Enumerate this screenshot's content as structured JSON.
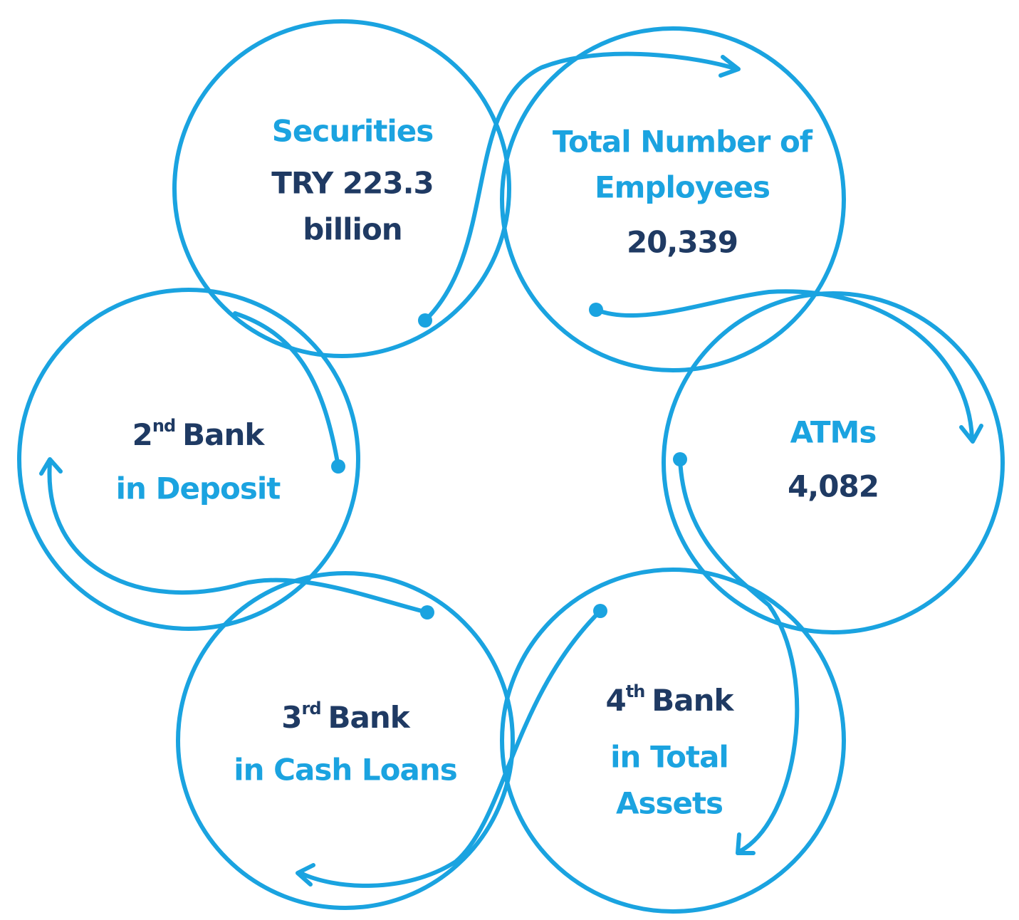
{
  "nodes": [
    {
      "lines": [
        "Securities",
        "TRY 223.3",
        "billion"
      ]
    },
    {
      "lines": [
        "Total Number of",
        "Employees",
        "20,339"
      ]
    },
    {
      "lines": [
        "ATMs",
        "4,082"
      ]
    },
    {
      "lines": [
        {
          "number": "4",
          "suffix": "th",
          "text": "Bank"
        },
        "in Total",
        "Assets"
      ]
    },
    {
      "lines": [
        {
          "number": "3",
          "suffix": "rd",
          "text": "Bank"
        },
        "in Cash Loans"
      ]
    },
    {
      "lines": [
        {
          "number": "2",
          "suffix": "nd",
          "text": "Bank"
        },
        "in Deposit"
      ]
    }
  ]
}
